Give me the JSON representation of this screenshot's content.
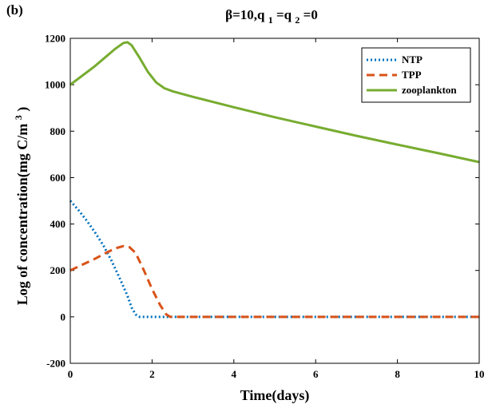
{
  "chart_data": {
    "type": "line",
    "panel_label": "(b)",
    "title": {
      "prefix": "β=10,q",
      "sub1": "1",
      "mid": "=q",
      "sub2": "2",
      "suffix": "=0"
    },
    "xlabel": "Time(days)",
    "ylabel": {
      "main": "Log of concentration(mg C/m",
      "sup": "3",
      "close": ")"
    },
    "xlim": [
      0,
      10
    ],
    "ylim": [
      -200,
      1200
    ],
    "xticks": [
      0,
      2,
      4,
      6,
      8,
      10
    ],
    "yticks": [
      -200,
      0,
      200,
      400,
      600,
      800,
      1000,
      1200
    ],
    "legend_position": "top-right",
    "series": [
      {
        "name": "NTP",
        "style": "dotted",
        "color": "#0072BD",
        "points": [
          [
            0,
            500
          ],
          [
            0.2,
            460
          ],
          [
            0.4,
            415
          ],
          [
            0.6,
            365
          ],
          [
            0.8,
            310
          ],
          [
            1.0,
            245
          ],
          [
            1.2,
            170
          ],
          [
            1.4,
            90
          ],
          [
            1.5,
            40
          ],
          [
            1.6,
            10
          ],
          [
            1.7,
            0
          ],
          [
            2.0,
            0
          ],
          [
            4,
            0
          ],
          [
            6,
            0
          ],
          [
            8,
            0
          ],
          [
            10,
            0
          ]
        ]
      },
      {
        "name": "TPP",
        "style": "dashed",
        "color": "#D95319",
        "points": [
          [
            0,
            200
          ],
          [
            0.3,
            225
          ],
          [
            0.6,
            250
          ],
          [
            0.9,
            278
          ],
          [
            1.1,
            295
          ],
          [
            1.3,
            305
          ],
          [
            1.45,
            300
          ],
          [
            1.6,
            275
          ],
          [
            1.8,
            200
          ],
          [
            2.0,
            120
          ],
          [
            2.2,
            50
          ],
          [
            2.35,
            10
          ],
          [
            2.45,
            0
          ],
          [
            4,
            0
          ],
          [
            6,
            0
          ],
          [
            8,
            0
          ],
          [
            10,
            0
          ]
        ]
      },
      {
        "name": "zooplankton",
        "style": "solid",
        "color": "#77AC30",
        "points": [
          [
            0,
            1000
          ],
          [
            0.3,
            1040
          ],
          [
            0.6,
            1080
          ],
          [
            0.9,
            1125
          ],
          [
            1.1,
            1155
          ],
          [
            1.3,
            1180
          ],
          [
            1.4,
            1183
          ],
          [
            1.5,
            1170
          ],
          [
            1.7,
            1115
          ],
          [
            1.9,
            1055
          ],
          [
            2.1,
            1010
          ],
          [
            2.3,
            985
          ],
          [
            2.5,
            972
          ],
          [
            3,
            948
          ],
          [
            4,
            903
          ],
          [
            5,
            860
          ],
          [
            6,
            820
          ],
          [
            7,
            780
          ],
          [
            8,
            742
          ],
          [
            9,
            705
          ],
          [
            10,
            667
          ]
        ]
      }
    ]
  }
}
